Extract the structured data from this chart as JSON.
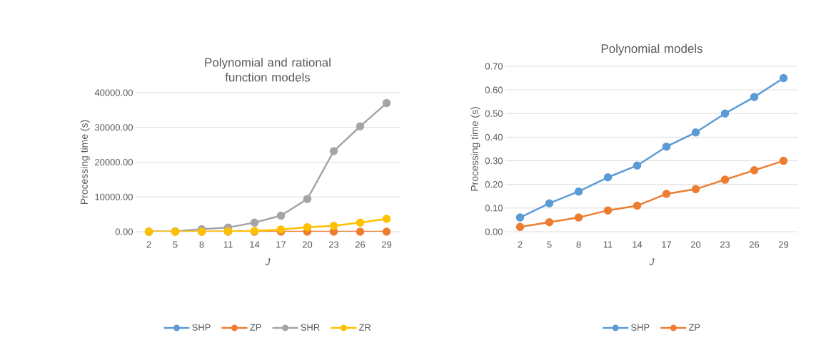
{
  "chart_data": [
    {
      "type": "line",
      "title": "Polynomial and rational function models",
      "xlabel": "J",
      "ylabel": "Processing time (s)",
      "categories": [
        "2",
        "5",
        "8",
        "11",
        "14",
        "17",
        "20",
        "23",
        "26",
        "29"
      ],
      "series": [
        {
          "name": "SHP",
          "color": "#5b9bd5",
          "values": [
            null,
            null,
            null,
            null,
            null,
            null,
            null,
            null,
            null,
            null
          ]
        },
        {
          "name": "ZP",
          "color": "#ed7d31",
          "values": [
            0,
            0,
            0,
            0,
            0,
            0,
            0,
            0,
            0,
            0
          ]
        },
        {
          "name": "SHR",
          "color": "#a5a5a5",
          "values": [
            0,
            100,
            700,
            1200,
            2600,
            4600,
            9400,
            23200,
            30300,
            37000
          ]
        },
        {
          "name": "ZR",
          "color": "#ffc000",
          "values": [
            0,
            0,
            0,
            100,
            200,
            600,
            1300,
            1700,
            2600,
            3700
          ]
        }
      ],
      "ylim": [
        0,
        40000
      ],
      "yticks": [
        {
          "value": 0,
          "label": "0.00"
        },
        {
          "value": 10000,
          "label": "10000.00"
        },
        {
          "value": 20000,
          "label": "20000.00"
        },
        {
          "value": 30000,
          "label": "30000.00"
        },
        {
          "value": 40000,
          "label": "40000.00"
        }
      ],
      "grid": "y",
      "legend": "bottom",
      "marker": "circle"
    },
    {
      "type": "line",
      "title": "Polynomial models",
      "xlabel": "J",
      "ylabel": "Processing time (s)",
      "categories": [
        "2",
        "5",
        "8",
        "11",
        "14",
        "17",
        "20",
        "23",
        "26",
        "29"
      ],
      "series": [
        {
          "name": "SHP",
          "color": "#5b9bd5",
          "values": [
            0.06,
            0.12,
            0.17,
            0.23,
            0.28,
            0.36,
            0.42,
            0.5,
            0.57,
            0.65
          ]
        },
        {
          "name": "ZP",
          "color": "#ed7d31",
          "values": [
            0.02,
            0.04,
            0.06,
            0.09,
            0.11,
            0.16,
            0.18,
            0.22,
            0.26,
            0.3
          ]
        }
      ],
      "ylim": [
        0,
        0.7
      ],
      "yticks": [
        {
          "value": 0,
          "label": "0.00"
        },
        {
          "value": 0.1,
          "label": "0.10"
        },
        {
          "value": 0.2,
          "label": "0.20"
        },
        {
          "value": 0.3,
          "label": "0.30"
        },
        {
          "value": 0.4,
          "label": "0.40"
        },
        {
          "value": 0.5,
          "label": "0.50"
        },
        {
          "value": 0.6,
          "label": "0.60"
        },
        {
          "value": 0.7,
          "label": "0.70"
        }
      ],
      "grid": "y",
      "legend": "bottom",
      "marker": "circle"
    }
  ]
}
